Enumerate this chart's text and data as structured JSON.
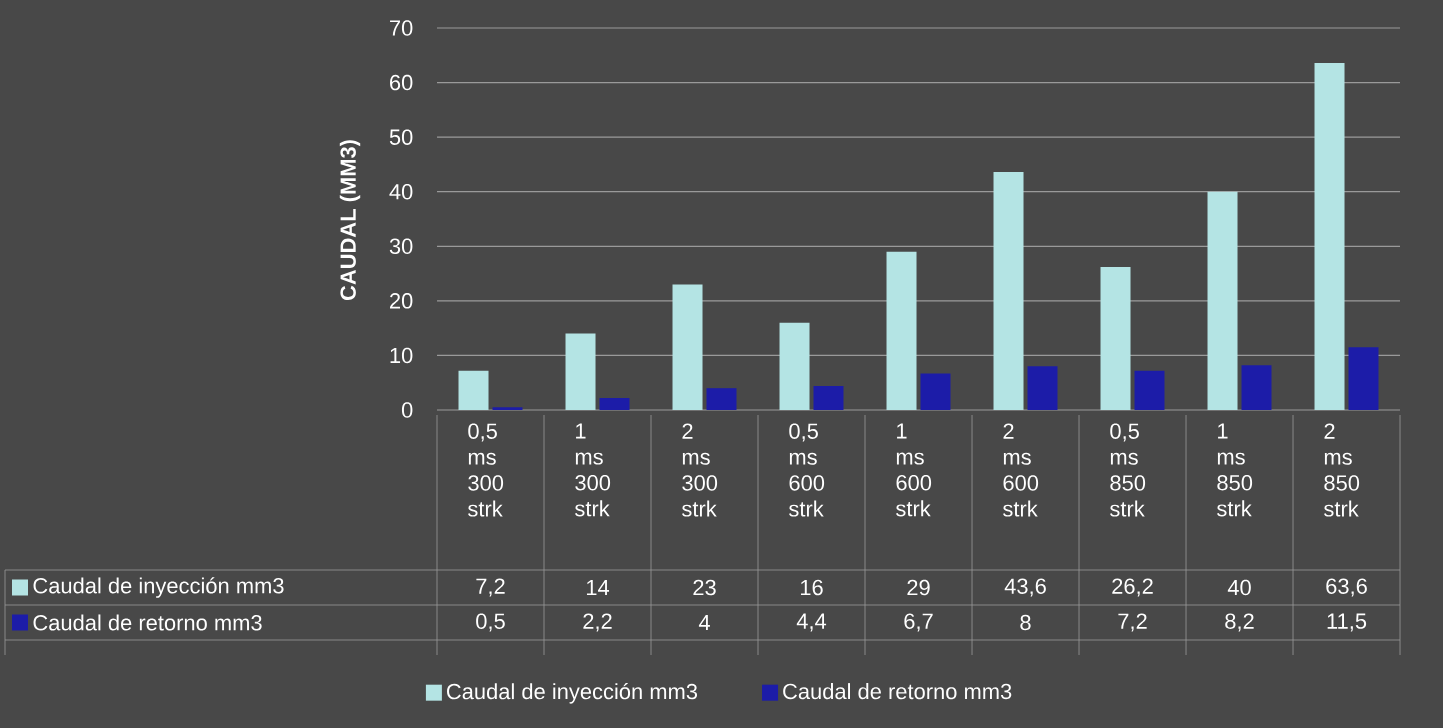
{
  "chart_data": {
    "type": "bar",
    "ylabel": "CAUDAL (MM3)",
    "categories": [
      "0,5 ms 300 strk",
      "1 ms 300 strk",
      "2 ms 300 strk",
      "0,5 ms 600 strk",
      "1 ms 600 strk",
      "2 ms 600 strk",
      "0,5 ms 850 strk",
      "1 ms 850 strk",
      "2 ms 850 strk"
    ],
    "series": [
      {
        "name": "Caudal de inyección mm3",
        "color": "#b4e4e4",
        "values": [
          7.2,
          14,
          23,
          16,
          29,
          43.6,
          26.2,
          40,
          63.6
        ],
        "value_labels": [
          "7,2",
          "14",
          "23",
          "16",
          "29",
          "43,6",
          "26,2",
          "40",
          "63,6"
        ]
      },
      {
        "name": "Caudal de retorno mm3",
        "color": "#1c1ca8",
        "values": [
          0.5,
          2.2,
          4,
          4.4,
          6.7,
          8,
          7.2,
          8.2,
          11.5
        ],
        "value_labels": [
          "0,5",
          "2,2",
          "4",
          "4,4",
          "6,7",
          "8",
          "7,2",
          "8,2",
          "11,5"
        ]
      }
    ],
    "ylim": [
      0,
      70
    ],
    "yticks": [
      0,
      10,
      20,
      30,
      40,
      50,
      60,
      70
    ],
    "grid": "y",
    "legend": "bottom"
  }
}
